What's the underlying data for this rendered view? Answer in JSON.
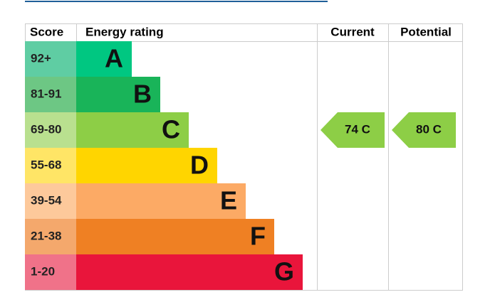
{
  "header": {
    "score": "Score",
    "rating": "Energy rating",
    "current": "Current",
    "potential": "Potential"
  },
  "rows": [
    {
      "score": "92+",
      "letter": "A"
    },
    {
      "score": "81-91",
      "letter": "B"
    },
    {
      "score": "69-80",
      "letter": "C"
    },
    {
      "score": "55-68",
      "letter": "D"
    },
    {
      "score": "39-54",
      "letter": "E"
    },
    {
      "score": "21-38",
      "letter": "F"
    },
    {
      "score": "1-20",
      "letter": "G"
    }
  ],
  "current": {
    "label": "74 C"
  },
  "potential": {
    "label": "80 C"
  }
}
